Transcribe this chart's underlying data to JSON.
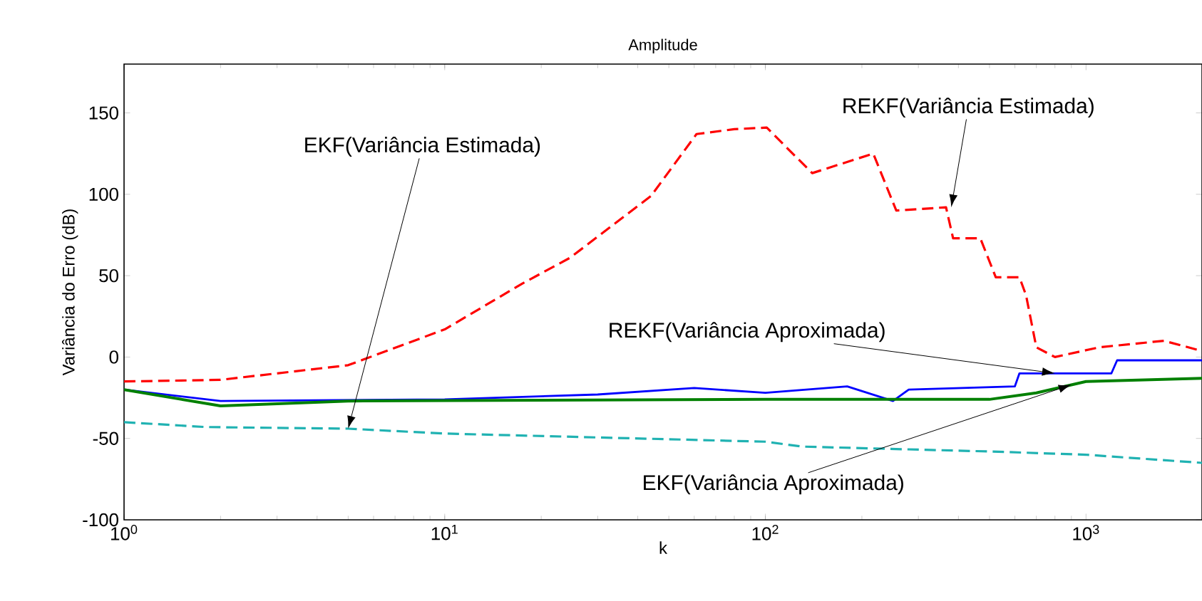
{
  "chart_data": {
    "type": "line",
    "title": "Amplitude",
    "xlabel": "k",
    "ylabel": "Variância do Erro (dB)",
    "log": "x",
    "xlim": [
      1,
      2300
    ],
    "ylim": [
      -100,
      180
    ],
    "xticks": [
      {
        "value": 1,
        "label": "10$^{0}$"
      },
      {
        "value": 10,
        "label": "10$^{1}$"
      },
      {
        "value": 100,
        "label": "10$^{2}$"
      },
      {
        "value": 1000,
        "label": "10$^{3}$"
      }
    ],
    "yticks": [
      -100,
      -50,
      0,
      50,
      100,
      150
    ],
    "series": [
      {
        "color": "#ff0000",
        "line_style": "dashed",
        "x": [
          1,
          2,
          5,
          10,
          17.4,
          24.6,
          44,
          61,
          80,
          101,
          140,
          217,
          256,
          366,
          385,
          468,
          523,
          620,
          650,
          700,
          800,
          1100,
          1750,
          2270
        ],
        "values": [
          -15,
          -14,
          -5,
          17,
          45,
          61,
          99,
          137,
          140,
          141,
          113,
          125,
          90,
          92,
          73,
          73,
          49,
          49,
          38,
          6,
          0,
          6,
          10,
          4
        ]
      },
      {
        "color": "#0000ff",
        "line_style": "solid",
        "x": [
          1,
          2,
          10,
          30,
          60,
          100,
          180,
          250,
          280,
          600,
          620,
          1200,
          1250,
          2300
        ],
        "values": [
          -20,
          -27,
          -26,
          -23,
          -19,
          -22,
          -18,
          -27,
          -20,
          -18,
          -10,
          -10,
          -2,
          -2
        ]
      },
      {
        "color": "#008000",
        "line_style": "solid",
        "x": [
          1,
          2,
          5,
          100,
          500,
          700,
          1000,
          2300
        ],
        "values": [
          -20,
          -30,
          -27,
          -26,
          -26,
          -22,
          -15,
          -13
        ]
      },
      {
        "color": "#20b2b2",
        "line_style": "dashed",
        "x": [
          1,
          1.8,
          5,
          10,
          100,
          130,
          500,
          1000,
          2300
        ],
        "values": [
          -40,
          -43,
          -44,
          -47,
          -52,
          -55,
          -58,
          -60,
          -65
        ]
      }
    ],
    "annotations": [
      {
        "text": "EKF(Variância Estimada)",
        "x": 5,
        "y": -44
      },
      {
        "text": "REKF(Variância Estimada)",
        "x": 380,
        "y": 92
      },
      {
        "text": "REKF(Variância Aproximada)",
        "x": 800,
        "y": -10
      },
      {
        "text": "EKF(Variância Aproximada)",
        "x": 900,
        "y": -17
      }
    ]
  }
}
